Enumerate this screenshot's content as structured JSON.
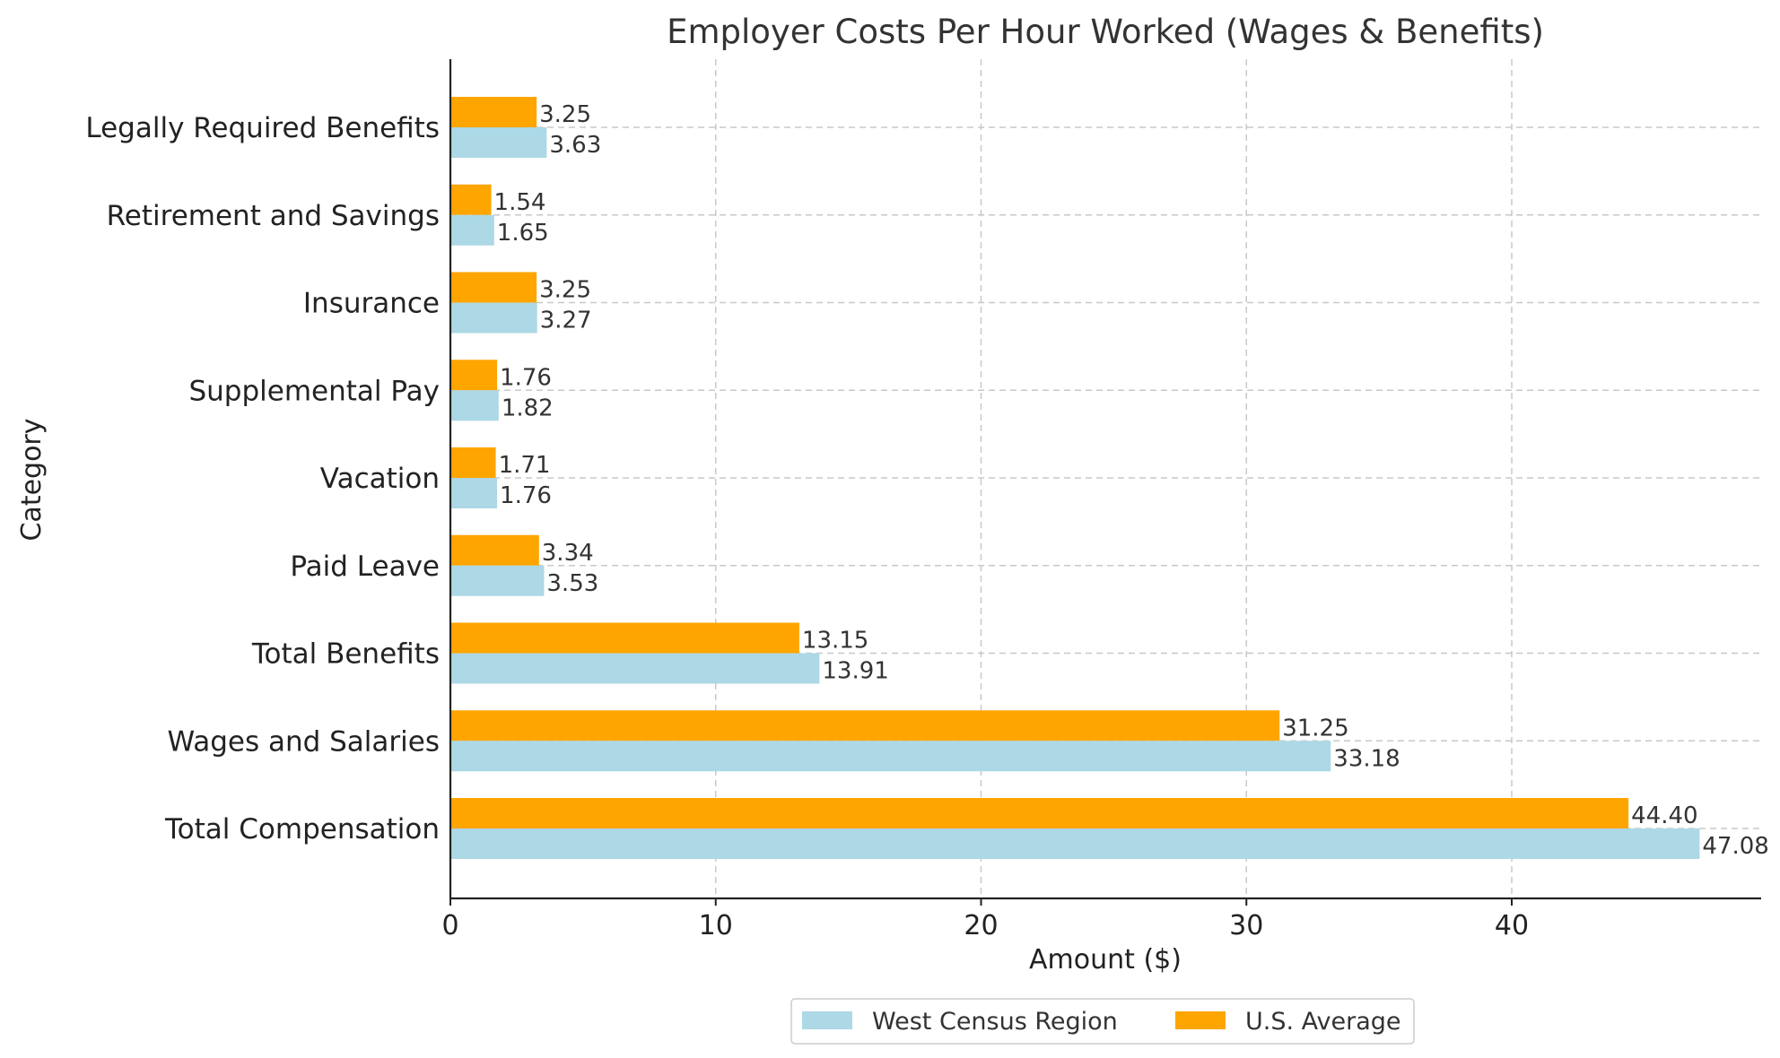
{
  "chart_data": {
    "type": "bar",
    "orientation": "horizontal",
    "title": "Employer Costs Per Hour Worked (Wages & Benefits)",
    "xlabel": "Amount ($)",
    "ylabel": "Category",
    "xlim": [
      0,
      49.4
    ],
    "xticks": [
      0,
      10,
      20,
      30,
      40
    ],
    "grid": true,
    "legend_position": "bottom-center",
    "categories": [
      "Total Compensation",
      "Wages and Salaries",
      "Total Benefits",
      "Paid Leave",
      "Vacation",
      "Supplemental Pay",
      "Insurance",
      "Retirement and Savings",
      "Legally Required Benefits"
    ],
    "series": [
      {
        "name": "West Census Region",
        "color": "#add8e6",
        "values": [
          47.08,
          33.18,
          13.91,
          3.53,
          1.76,
          1.82,
          3.27,
          1.65,
          3.63
        ],
        "labels": [
          "47.08",
          "33.18",
          "13.91",
          "3.53",
          "1.76",
          "1.82",
          "3.27",
          "1.65",
          "3.63"
        ]
      },
      {
        "name": "U.S. Average",
        "color": "#ffa500",
        "values": [
          44.4,
          31.25,
          13.15,
          3.34,
          1.71,
          1.76,
          3.25,
          1.54,
          3.25
        ],
        "labels": [
          "44.40",
          "31.25",
          "13.15",
          "3.34",
          "1.71",
          "1.76",
          "3.25",
          "1.54",
          "3.25"
        ]
      }
    ]
  }
}
